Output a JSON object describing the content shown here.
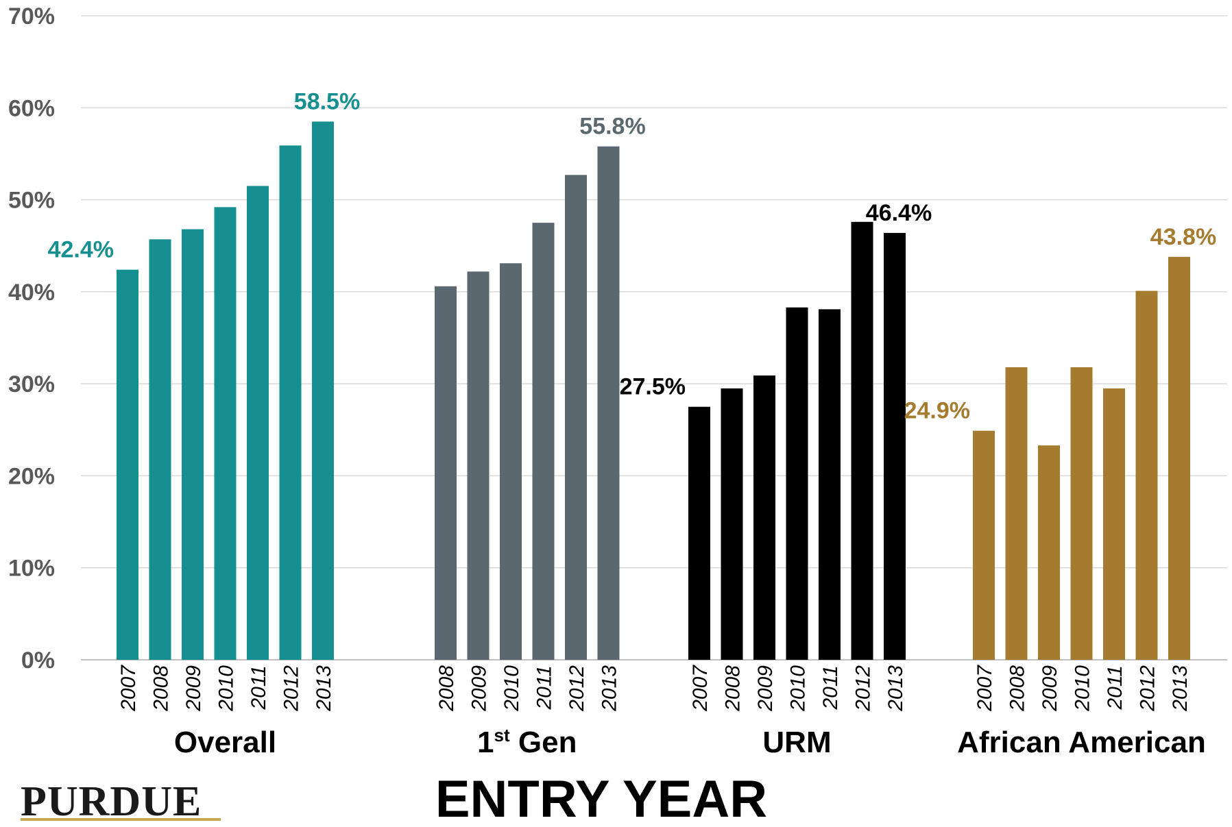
{
  "chart_data": {
    "type": "bar",
    "xlabel": "ENTRY YEAR",
    "ylabel": "",
    "ylim": [
      0,
      70
    ],
    "yticks": [
      "0%",
      "10%",
      "20%",
      "30%",
      "40%",
      "50%",
      "60%",
      "70%"
    ],
    "grid": true,
    "groups": [
      {
        "name": "Overall",
        "color": "#168F90",
        "years": [
          "2007",
          "2008",
          "2009",
          "2010",
          "2011",
          "2012",
          "2013"
        ],
        "values": [
          42.4,
          45.7,
          46.8,
          49.2,
          51.5,
          55.9,
          58.5
        ],
        "labels": [
          {
            "index": 0,
            "text": "42.4%"
          },
          {
            "index": 6,
            "text": "58.5%"
          }
        ]
      },
      {
        "name_main": "1",
        "name_sup": "st",
        "name_rest": " Gen",
        "color": "#5B6870",
        "years": [
          "2008",
          "2009",
          "2010",
          "2011",
          "2012",
          "2013"
        ],
        "values": [
          40.6,
          42.2,
          43.1,
          47.5,
          52.7,
          55.8
        ],
        "labels": [
          {
            "index": 5,
            "text": "55.8%"
          }
        ]
      },
      {
        "name": "URM",
        "color": "#000000",
        "years": [
          "2007",
          "2008",
          "2009",
          "2010",
          "2011",
          "2012",
          "2013"
        ],
        "values": [
          27.5,
          29.5,
          30.9,
          38.3,
          38.1,
          47.6,
          46.4
        ],
        "labels": [
          {
            "index": 0,
            "text": "27.5%"
          },
          {
            "index": 6,
            "text": "46.4%"
          }
        ]
      },
      {
        "name": "African American",
        "color": "#A57B2F",
        "years": [
          "2007",
          "2008",
          "2009",
          "2010",
          "2011",
          "2012",
          "2013"
        ],
        "values": [
          24.9,
          31.8,
          23.3,
          31.8,
          29.5,
          40.1,
          43.8
        ],
        "labels": [
          {
            "index": 0,
            "text": "24.9%"
          },
          {
            "index": 6,
            "text": "43.8%"
          }
        ]
      }
    ]
  },
  "logo": {
    "text": "PURDUE",
    "accent_color": "#C9A750"
  }
}
